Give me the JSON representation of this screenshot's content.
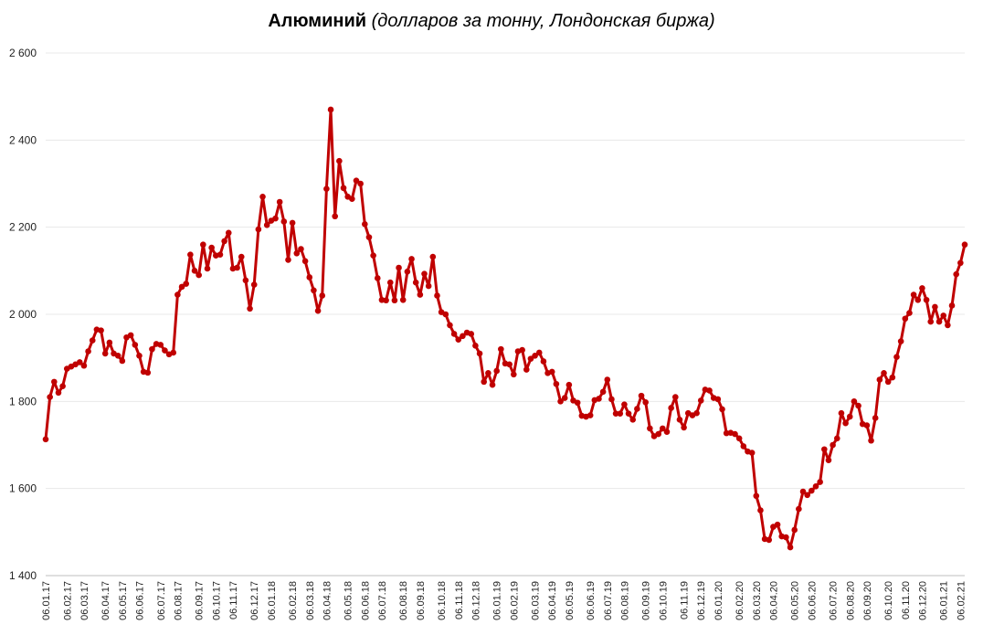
{
  "chart_data": {
    "type": "line",
    "title_main": "Алюминий",
    "title_sub": "(долларов за тонну, Лондонская биржа)",
    "ylim": [
      1400,
      2600
    ],
    "yticks": [
      1400,
      1600,
      1800,
      2000,
      2200,
      2400,
      2600
    ],
    "ytick_labels": [
      "1 400",
      "1 600",
      "1 800",
      "2 000",
      "2 200",
      "2 400",
      "2 600"
    ],
    "grid": true,
    "colors": {
      "line": "#c00000",
      "grid": "#e8e8e8",
      "axis": "#bfbfbf"
    },
    "x_ticks": [
      {
        "label": "06.01.17",
        "index": 0
      },
      {
        "label": "06.02.17",
        "index": 5
      },
      {
        "label": "06.03.17",
        "index": 9
      },
      {
        "label": "06.04.17",
        "index": 14
      },
      {
        "label": "06.05.17",
        "index": 18
      },
      {
        "label": "06.06.17",
        "index": 22
      },
      {
        "label": "06.07.17",
        "index": 27
      },
      {
        "label": "06.08.17",
        "index": 31
      },
      {
        "label": "06.09.17",
        "index": 36
      },
      {
        "label": "06.10.17",
        "index": 40
      },
      {
        "label": "06.11.17",
        "index": 44
      },
      {
        "label": "06.12.17",
        "index": 49
      },
      {
        "label": "06.01.18",
        "index": 53
      },
      {
        "label": "06.02.18",
        "index": 58
      },
      {
        "label": "06.03.18",
        "index": 62
      },
      {
        "label": "06.04.18",
        "index": 66
      },
      {
        "label": "06.05.18",
        "index": 71
      },
      {
        "label": "06.06.18",
        "index": 75
      },
      {
        "label": "06.07.18",
        "index": 79
      },
      {
        "label": "06.08.18",
        "index": 84
      },
      {
        "label": "06.09.18",
        "index": 88
      },
      {
        "label": "06.10.18",
        "index": 93
      },
      {
        "label": "06.11.18",
        "index": 97
      },
      {
        "label": "06.12.18",
        "index": 101
      },
      {
        "label": "06.01.19",
        "index": 106
      },
      {
        "label": "06.02.19",
        "index": 110
      },
      {
        "label": "06.03.19",
        "index": 115
      },
      {
        "label": "06.04.19",
        "index": 119
      },
      {
        "label": "06.05.19",
        "index": 123
      },
      {
        "label": "06.06.19",
        "index": 128
      },
      {
        "label": "06.07.19",
        "index": 132
      },
      {
        "label": "06.08.19",
        "index": 136
      },
      {
        "label": "06.09.19",
        "index": 141
      },
      {
        "label": "06.10.19",
        "index": 145
      },
      {
        "label": "06.11.19",
        "index": 150
      },
      {
        "label": "06.12.19",
        "index": 154
      },
      {
        "label": "06.01.20",
        "index": 158
      },
      {
        "label": "06.02.20",
        "index": 163
      },
      {
        "label": "06.03.20",
        "index": 167
      },
      {
        "label": "06.04.20",
        "index": 171
      },
      {
        "label": "06.05.20",
        "index": 176
      },
      {
        "label": "06.06.20",
        "index": 180
      },
      {
        "label": "06.07.20",
        "index": 185
      },
      {
        "label": "06.08.20",
        "index": 189
      },
      {
        "label": "06.09.20",
        "index": 193
      },
      {
        "label": "06.10.20",
        "index": 198
      },
      {
        "label": "06.11.20",
        "index": 202
      },
      {
        "label": "06.12.20",
        "index": 206
      },
      {
        "label": "06.01.21",
        "index": 211
      },
      {
        "label": "06.02.21",
        "index": 215
      }
    ],
    "series": [
      {
        "values": [
          1713,
          1810,
          1845,
          1820,
          1835,
          1875,
          1880,
          1885,
          1890,
          1882,
          1915,
          1940,
          1965,
          1963,
          1910,
          1935,
          1910,
          1905,
          1893,
          1947,
          1952,
          1930,
          1905,
          1868,
          1866,
          1920,
          1932,
          1930,
          1917,
          1908,
          1912,
          2045,
          2063,
          2070,
          2137,
          2100,
          2090,
          2160,
          2105,
          2153,
          2135,
          2137,
          2168,
          2187,
          2105,
          2107,
          2132,
          2078,
          2013,
          2068,
          2195,
          2270,
          2205,
          2215,
          2220,
          2258,
          2213,
          2125,
          2210,
          2140,
          2150,
          2122,
          2085,
          2055,
          2008,
          2043,
          2288,
          2470,
          2225,
          2352,
          2290,
          2270,
          2265,
          2307,
          2300,
          2207,
          2177,
          2135,
          2083,
          2033,
          2032,
          2073,
          2032,
          2107,
          2033,
          2098,
          2127,
          2073,
          2045,
          2093,
          2065,
          2132,
          2043,
          2005,
          2000,
          1975,
          1955,
          1942,
          1950,
          1958,
          1955,
          1928,
          1910,
          1845,
          1865,
          1838,
          1870,
          1920,
          1887,
          1885,
          1862,
          1915,
          1918,
          1873,
          1898,
          1905,
          1912,
          1892,
          1865,
          1868,
          1840,
          1800,
          1808,
          1838,
          1802,
          1797,
          1767,
          1765,
          1768,
          1803,
          1806,
          1822,
          1850,
          1805,
          1772,
          1772,
          1793,
          1772,
          1758,
          1783,
          1813,
          1798,
          1738,
          1720,
          1725,
          1738,
          1730,
          1785,
          1810,
          1758,
          1740,
          1773,
          1768,
          1773,
          1802,
          1827,
          1825,
          1808,
          1805,
          1782,
          1727,
          1728,
          1725,
          1715,
          1697,
          1685,
          1682,
          1583,
          1550,
          1484,
          1482,
          1512,
          1517,
          1490,
          1488,
          1465,
          1505,
          1553,
          1593,
          1585,
          1595,
          1605,
          1615,
          1690,
          1665,
          1700,
          1715,
          1773,
          1750,
          1765,
          1800,
          1790,
          1748,
          1745,
          1710,
          1762,
          1850,
          1865,
          1845,
          1855,
          1902,
          1938,
          1990,
          2003,
          2045,
          2033,
          2060,
          2033,
          1983,
          2017,
          1983,
          1997,
          1975,
          2020,
          2092,
          2118,
          2160
        ]
      }
    ]
  }
}
